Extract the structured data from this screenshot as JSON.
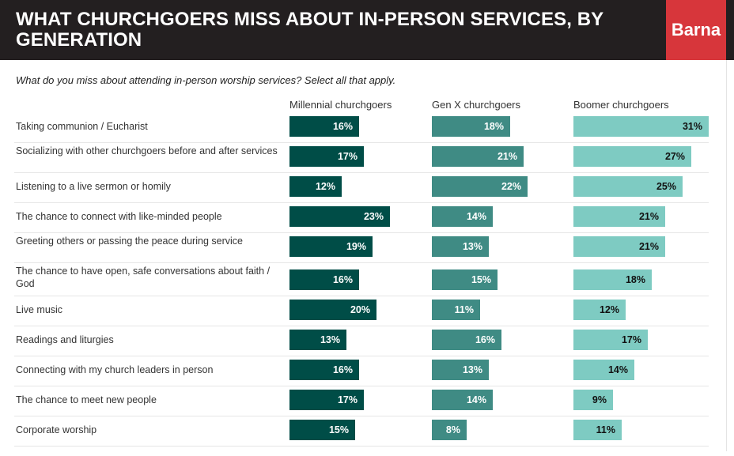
{
  "header": {
    "title": "WHAT CHURCHGOERS MISS ABOUT IN-PERSON SERVICES, BY GENERATION",
    "logo": "Barna"
  },
  "question": "What do you miss about attending in-person worship services? Select all that apply.",
  "colors": {
    "header_bg": "#231f20",
    "logo_bg": "#d7363b",
    "millennial": "#004d47",
    "genx": "#3f8b84",
    "boomer": "#7ecbc2"
  },
  "chart_data": {
    "type": "bar",
    "orientation": "horizontal",
    "unit": "%",
    "xlim": [
      0,
      35
    ],
    "categories": [
      "Taking communion / Eucharist",
      "Socializing with other churchgoers before and after services",
      "Listening to a live sermon or homily",
      "The chance to connect with like-minded people",
      "Greeting others or passing the peace during service",
      "The chance to have open, safe conversations about faith / God",
      "Live music",
      "Readings and liturgies",
      "Connecting with my church leaders in person",
      "The chance to meet new people",
      "Corporate worship"
    ],
    "series": [
      {
        "name": "Millennial churchgoers",
        "values": [
          16,
          17,
          12,
          23,
          19,
          16,
          20,
          13,
          16,
          17,
          15
        ]
      },
      {
        "name": "Gen X churchgoers",
        "values": [
          18,
          21,
          22,
          14,
          13,
          15,
          11,
          16,
          13,
          14,
          8
        ]
      },
      {
        "name": "Boomer churchgoers",
        "values": [
          31,
          27,
          25,
          21,
          21,
          18,
          12,
          17,
          14,
          9,
          11
        ]
      }
    ]
  }
}
